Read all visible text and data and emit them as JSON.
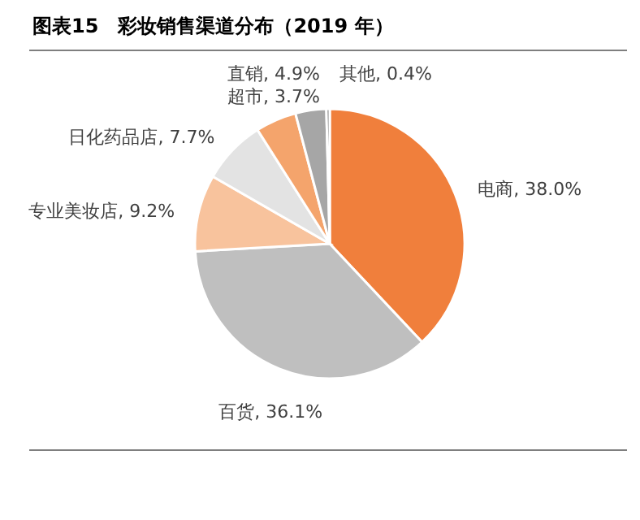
{
  "chart_data": {
    "type": "pie",
    "title": "图表15　彩妆销售渠道分布（2019 年）",
    "categories": [
      "电商",
      "百货",
      "专业美妆店",
      "日化药品店",
      "直销",
      "超市",
      "其他"
    ],
    "values": [
      38.0,
      36.1,
      9.2,
      7.7,
      4.9,
      3.7,
      0.4
    ],
    "colors": [
      "#f07f3c",
      "#bfbfbf",
      "#f8c39d",
      "#e3e3e3",
      "#f4a46c",
      "#a6a6a6",
      "#808080"
    ],
    "value_labels": [
      "38.0%",
      "36.1%",
      "9.2%",
      "7.7%",
      "4.9%",
      "3.7%",
      "0.4%"
    ]
  }
}
